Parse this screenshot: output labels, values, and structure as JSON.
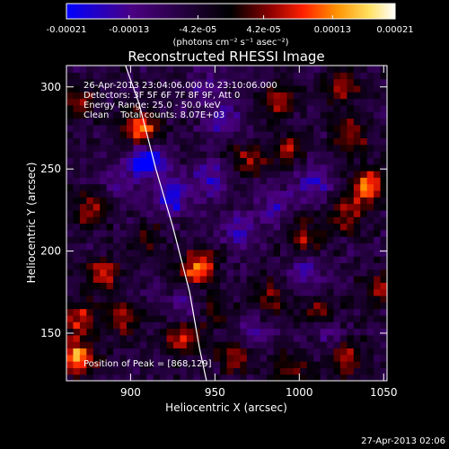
{
  "colorbar": {
    "tick_labels": [
      "-0.00021",
      "-0.00013",
      "-4.2e-05",
      "4.2e-05",
      "0.00013",
      "0.00021"
    ],
    "tick_values": [
      -0.00021,
      -0.00013,
      -4.2e-05,
      4.2e-05,
      0.00013,
      0.00021
    ],
    "range": [
      -0.00021,
      0.00021
    ],
    "unit_label": "(photons cm⁻² s⁻¹ asec⁻²)",
    "colors": [
      "#0000ff",
      "#4b0082",
      "#000000",
      "#8b0000",
      "#ff2000",
      "#ff9000",
      "#ffe060",
      "#ffffff"
    ]
  },
  "chart_data": {
    "type": "heatmap",
    "title": "Reconstructed RHESSI Image",
    "xlabel": "Heliocentric X (arcsec)",
    "ylabel": "Heliocentric Y (arcsec)",
    "xlim": [
      862,
      1052
    ],
    "ylim": [
      121,
      313
    ],
    "x_ticks": [
      900,
      950,
      1000,
      1050
    ],
    "y_ticks": [
      150,
      200,
      250,
      300
    ],
    "x_tick_labels": [
      "900",
      "950",
      "1000",
      "1050"
    ],
    "y_tick_labels": [
      "150",
      "200",
      "250",
      "300"
    ],
    "annotations": [
      "26-Apr-2013 23:04:06.000 to 23:10:06.000",
      "Detectors: 3F 5F 6F 7F 8F 9F, Att 0",
      "Energy Range: 25.0 - 50.0 keV",
      "Clean    Total counts: 8.07E+03"
    ],
    "peak_label": "Position of Peak = [868,129]",
    "peak_position": [
      868,
      129
    ],
    "limb_curve": [
      [
        897,
        313
      ],
      [
        905,
        290
      ],
      [
        915,
        250
      ],
      [
        925,
        215
      ],
      [
        935,
        175
      ],
      [
        941,
        140
      ],
      [
        945,
        121
      ]
    ],
    "sources": [
      {
        "x": 868,
        "y": 135,
        "value": 0.00021
      },
      {
        "x": 870,
        "y": 158,
        "value": 0.00013
      },
      {
        "x": 906,
        "y": 274,
        "value": 0.00019
      },
      {
        "x": 868,
        "y": 292,
        "value": 0.00011
      },
      {
        "x": 877,
        "y": 225,
        "value": 0.00012
      },
      {
        "x": 884,
        "y": 186,
        "value": 0.00013
      },
      {
        "x": 896,
        "y": 160,
        "value": 0.00012
      },
      {
        "x": 940,
        "y": 190,
        "value": 0.00018
      },
      {
        "x": 930,
        "y": 146,
        "value": 0.00012
      },
      {
        "x": 962,
        "y": 136,
        "value": 0.00012
      },
      {
        "x": 995,
        "y": 128,
        "value": 0.0001
      },
      {
        "x": 1028,
        "y": 135,
        "value": 0.00013
      },
      {
        "x": 1003,
        "y": 208,
        "value": 0.00011
      },
      {
        "x": 982,
        "y": 173,
        "value": 0.0001
      },
      {
        "x": 1029,
        "y": 222,
        "value": 0.00012
      },
      {
        "x": 1041,
        "y": 240,
        "value": 0.00017
      },
      {
        "x": 1031,
        "y": 272,
        "value": 0.00012
      },
      {
        "x": 1026,
        "y": 300,
        "value": 0.00011
      },
      {
        "x": 988,
        "y": 293,
        "value": 0.00012
      },
      {
        "x": 993,
        "y": 262,
        "value": 0.0001
      },
      {
        "x": 969,
        "y": 256,
        "value": 0.0001
      },
      {
        "x": 1047,
        "y": 178,
        "value": 0.0001
      },
      {
        "x": 1012,
        "y": 163,
        "value": 9e-05
      },
      {
        "x": 950,
        "y": 164,
        "value": 8e-05
      },
      {
        "x": 910,
        "y": 207,
        "value": 7e-05
      },
      {
        "x": 909,
        "y": 255,
        "value": -0.00019
      },
      {
        "x": 925,
        "y": 233,
        "value": -0.00014
      },
      {
        "x": 948,
        "y": 245,
        "value": -0.0001
      },
      {
        "x": 965,
        "y": 212,
        "value": -0.0001
      },
      {
        "x": 985,
        "y": 230,
        "value": -8e-05
      },
      {
        "x": 1008,
        "y": 242,
        "value": -9e-05
      },
      {
        "x": 955,
        "y": 280,
        "value": -8e-05
      },
      {
        "x": 945,
        "y": 300,
        "value": -7e-05
      },
      {
        "x": 1002,
        "y": 188,
        "value": -8e-05
      },
      {
        "x": 1017,
        "y": 150,
        "value": -7e-05
      },
      {
        "x": 972,
        "y": 150,
        "value": -8e-05
      },
      {
        "x": 932,
        "y": 168,
        "value": -6e-05
      },
      {
        "x": 892,
        "y": 242,
        "value": -5e-05
      }
    ]
  },
  "footer": {
    "timestamp": "27-Apr-2013 02:06"
  }
}
